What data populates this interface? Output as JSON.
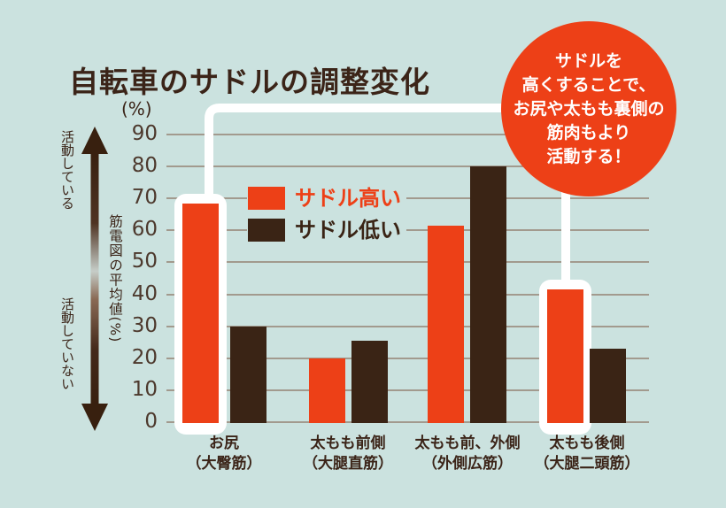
{
  "page": {
    "background_color": "#cbe2df",
    "grid_color": "#a29a8e",
    "text_color": "#3b2418",
    "tick_text_color": "#4d392d"
  },
  "y_axis": {
    "unit": "(%)",
    "label": "筋電図の平均値(%)",
    "ticks": [
      90,
      80,
      70,
      60,
      50,
      40,
      30,
      20,
      10,
      0
    ]
  },
  "activity_scale": {
    "top": "活動している",
    "bottom": "活動していない"
  },
  "legend": {
    "items": [
      {
        "label": "サドル高い",
        "color": "#ed4017",
        "text_color": "#ed4017"
      },
      {
        "label": "サドル低い",
        "color": "#3a2415",
        "text_color": "#3a2415"
      }
    ]
  },
  "callout": {
    "lines": [
      "サドルを",
      "高くすることで、",
      "お尻や太もも裏側の",
      "筋肉もより",
      "活動する！"
    ],
    "bubble_color": "#ed4017",
    "text_color": "#ffffff"
  },
  "chart_data": {
    "type": "bar",
    "title": "自転車のサドルの調整変化",
    "ylabel": "筋電図の平均値(%)",
    "xlabel": "",
    "ylim": [
      0,
      90
    ],
    "ytick_step": 10,
    "grid": true,
    "legend_position": "upper-left-inside",
    "categories": [
      "お尻",
      "太もも前側",
      "太もも前、外側",
      "太もも後側"
    ],
    "category_sublabels": [
      "（大臀筋）",
      "（大腿直筋）",
      "（外側広筋）",
      "（大腿二頭筋）"
    ],
    "series": [
      {
        "name": "サドル高い",
        "color": "#ed4017",
        "values": [
          68.5,
          20,
          61.5,
          41.5
        ]
      },
      {
        "name": "サドル低い",
        "color": "#3a2415",
        "values": [
          30,
          25.5,
          80,
          23
        ]
      }
    ],
    "highlighted_bars": [
      {
        "series": 0,
        "category_index": 0
      },
      {
        "series": 0,
        "category_index": 3
      }
    ]
  }
}
